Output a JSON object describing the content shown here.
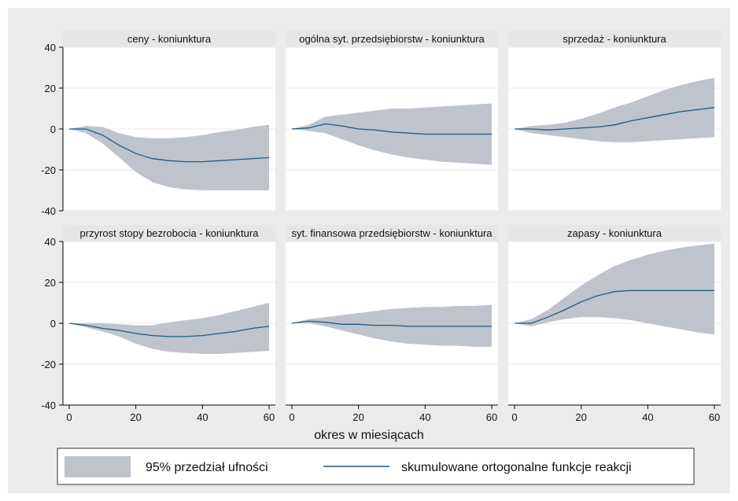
{
  "chart_data": {
    "type": "area",
    "xlabel": "okres w miesiącach",
    "xlim": [
      0,
      60
    ],
    "ylim": [
      -40,
      40
    ],
    "xticks": [
      0,
      20,
      40,
      60
    ],
    "yticks": [
      -40,
      -20,
      0,
      20,
      40
    ],
    "grid": true,
    "legend_position": "bottom",
    "legend": {
      "band_label": "95% przedział ufności",
      "line_label": "skumulowane ortogonalne funkcje reakcji"
    },
    "colors": {
      "band": "#bfc3cc",
      "line": "#1f5a82",
      "strip": "#e6e6e8",
      "outer_background": "#ebebed"
    },
    "x": [
      0,
      5,
      10,
      15,
      20,
      25,
      30,
      35,
      40,
      45,
      50,
      55,
      60
    ],
    "panels": [
      {
        "title": "ceny - koniunktura",
        "response": [
          0,
          0,
          -3,
          -8,
          -12,
          -14.5,
          -15.5,
          -16,
          -16,
          -15.5,
          -15,
          -14.5,
          -14
        ],
        "lower": [
          0,
          -2,
          -7,
          -14,
          -21,
          -26,
          -28.5,
          -29.5,
          -30,
          -30,
          -30,
          -30,
          -30
        ],
        "upper": [
          0,
          1.5,
          1,
          -2,
          -4,
          -4.5,
          -4.5,
          -4,
          -3,
          -1.5,
          -0.5,
          1,
          2
        ]
      },
      {
        "title": "ogólna syt. przedsiębiorstw - koniunktura",
        "response": [
          0,
          0.5,
          2.5,
          1.5,
          0,
          -0.5,
          -1.5,
          -2,
          -2.5,
          -2.5,
          -2.5,
          -2.5,
          -2.5
        ],
        "lower": [
          0,
          -1,
          -2,
          -5,
          -8,
          -10.5,
          -12.5,
          -14,
          -15,
          -16,
          -16.5,
          -17,
          -17.5
        ],
        "upper": [
          0,
          2,
          6,
          7,
          8,
          9,
          10,
          10,
          10.5,
          11,
          11.5,
          12,
          12.5
        ]
      },
      {
        "title": "sprzedaż - koniunktura",
        "response": [
          0,
          0,
          -0.5,
          0,
          0.5,
          1,
          2,
          4,
          5.5,
          7,
          8.5,
          9.5,
          10.5
        ],
        "lower": [
          0,
          -2,
          -3,
          -4,
          -5,
          -6,
          -6.5,
          -6.5,
          -6,
          -5.5,
          -5,
          -4.5,
          -4
        ],
        "upper": [
          0,
          1.5,
          2,
          3,
          5,
          7.5,
          10.5,
          13,
          16,
          19,
          21.5,
          23.5,
          25
        ]
      },
      {
        "title": "przyrost stopy bezrobocia - koniunktura",
        "response": [
          0,
          -1,
          -2.5,
          -3.5,
          -5,
          -6,
          -6.5,
          -6.5,
          -6,
          -5,
          -4,
          -2.5,
          -1.5
        ],
        "lower": [
          0,
          -2,
          -4,
          -6.5,
          -10,
          -12.5,
          -14,
          -14.5,
          -15,
          -15,
          -14.5,
          -14,
          -13.5
        ],
        "upper": [
          0,
          0,
          0,
          -0.5,
          -1,
          -1,
          0.5,
          1.5,
          2.5,
          4,
          6,
          8,
          10
        ]
      },
      {
        "title": "syt. finansowa przedsiębiorstw - koniunktura",
        "response": [
          0,
          1,
          0.5,
          -0.5,
          -0.5,
          -1,
          -1,
          -1.5,
          -1.5,
          -1.5,
          -1.5,
          -1.5,
          -1.5
        ],
        "lower": [
          0,
          0,
          -1.5,
          -3.5,
          -5.5,
          -7.5,
          -9,
          -10,
          -10.5,
          -11,
          -11,
          -11.5,
          -11.5
        ],
        "upper": [
          0,
          2,
          3,
          4,
          5,
          6,
          7,
          7.5,
          8,
          8,
          8.5,
          8.5,
          9
        ]
      },
      {
        "title": "zapasy - koniunktura",
        "response": [
          0,
          0,
          3,
          6.5,
          10.5,
          13.5,
          15.5,
          16,
          16,
          16,
          16,
          16,
          16
        ],
        "lower": [
          0,
          -1.5,
          0.5,
          2,
          3,
          3,
          2.5,
          1.5,
          0,
          -1.5,
          -3,
          -4.5,
          -5.5
        ],
        "upper": [
          0,
          2,
          6.5,
          12.5,
          18.5,
          23.5,
          28,
          31,
          33.5,
          35.5,
          37,
          38,
          39
        ]
      }
    ]
  }
}
